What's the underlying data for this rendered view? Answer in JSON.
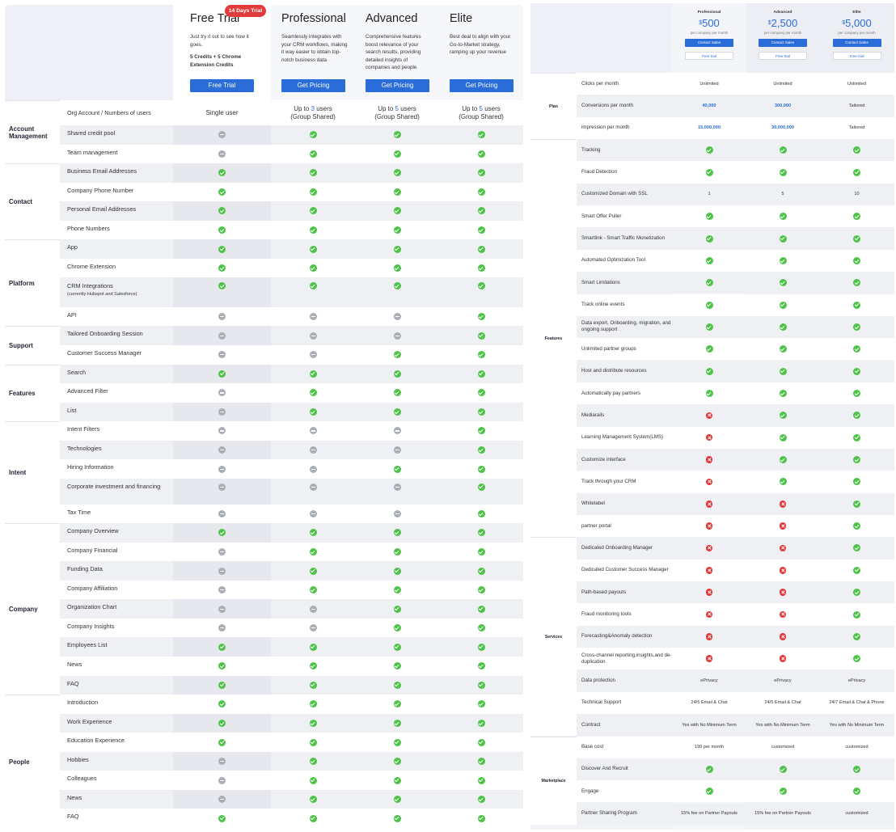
{
  "left": {
    "trial_badge": "14 Days Trial",
    "plans": [
      {
        "name": "Free Trial",
        "desc": "Just try it out to see how it goes.",
        "extra": "5 Credits + 5 Chrome Extension Credits",
        "button": "Free Trial"
      },
      {
        "name": "Professional",
        "desc": "Seamlessly integrates with your CRM workflows, making it way easier to obtain top-notch business data",
        "extra": "",
        "button": "Get Pricing"
      },
      {
        "name": "Advanced",
        "desc": "Comprehensive features boost relevance of your search results, providing detailed insights of companies and people",
        "extra": "",
        "button": "Get Pricing"
      },
      {
        "name": "Elite",
        "desc": "Best deal to align with your Go-to-Market strategy, ramping up your revenue",
        "extra": "",
        "button": "Get Pricing"
      }
    ],
    "first_row": {
      "feature": "Org Account / Numbers of users",
      "cells": [
        {
          "pre": "Single user",
          "num": "",
          "post": ""
        },
        {
          "pre": "Up to ",
          "num": "3",
          "post": " users",
          "sub": "(Group Shared)"
        },
        {
          "pre": "Up to ",
          "num": "5",
          "post": " users",
          "sub": "(Group Shared)"
        },
        {
          "pre": "Up to ",
          "num": "5",
          "post": " users",
          "sub": "(Group Shared)"
        }
      ]
    },
    "groups": [
      {
        "name": "Account Management",
        "rows": [
          {
            "f": "Shared credit pool",
            "v": [
              "n",
              "y",
              "y",
              "y"
            ]
          },
          {
            "f": "Team management",
            "v": [
              "n",
              "y",
              "y",
              "y"
            ]
          }
        ]
      },
      {
        "name": "Contact",
        "rows": [
          {
            "f": "Business Email Addresses",
            "v": [
              "y",
              "y",
              "y",
              "y"
            ]
          },
          {
            "f": "Company Phone Number",
            "v": [
              "y",
              "y",
              "y",
              "y"
            ]
          },
          {
            "f": "Personal Email Addresses",
            "v": [
              "y",
              "y",
              "y",
              "y"
            ]
          },
          {
            "f": "Phone Numbers",
            "v": [
              "y",
              "y",
              "y",
              "y"
            ]
          }
        ]
      },
      {
        "name": "Platform",
        "rows": [
          {
            "f": "App",
            "v": [
              "y",
              "y",
              "y",
              "y"
            ]
          },
          {
            "f": "Chrome Extension",
            "v": [
              "y",
              "y",
              "y",
              "y"
            ]
          },
          {
            "f": "CRM Integrations",
            "sub": "(currently Hubspot and Salesforce)",
            "v": [
              "y",
              "y",
              "y",
              "y"
            ],
            "tall": true
          },
          {
            "f": "API",
            "v": [
              "n",
              "n",
              "n",
              "y"
            ]
          }
        ]
      },
      {
        "name": "Support",
        "rows": [
          {
            "f": "Tailored Onboarding Session",
            "v": [
              "n",
              "n",
              "n",
              "y"
            ]
          },
          {
            "f": "Customer Success Manager",
            "v": [
              "n",
              "n",
              "y",
              "y"
            ]
          }
        ]
      },
      {
        "name": "Features",
        "rows": [
          {
            "f": "Search",
            "v": [
              "y",
              "y",
              "y",
              "y"
            ]
          },
          {
            "f": "Advanced Filter",
            "v": [
              "n",
              "y",
              "y",
              "y"
            ]
          },
          {
            "f": "List",
            "v": [
              "n",
              "y",
              "y",
              "y"
            ]
          }
        ]
      },
      {
        "name": "Intent",
        "rows": [
          {
            "f": "Intent Filters",
            "v": [
              "n",
              "n",
              "n",
              "y"
            ]
          },
          {
            "f": "Technologies",
            "v": [
              "n",
              "n",
              "n",
              "y"
            ]
          },
          {
            "f": "Hiring Information",
            "v": [
              "n",
              "n",
              "y",
              "y"
            ]
          },
          {
            "f": "Corporate investment and financing",
            "v": [
              "n",
              "n",
              "n",
              "y"
            ],
            "tall": true
          },
          {
            "f": "Tax Time",
            "v": [
              "n",
              "n",
              "n",
              "y"
            ]
          }
        ]
      },
      {
        "name": "Company",
        "rows": [
          {
            "f": "Company Overview",
            "v": [
              "y",
              "y",
              "y",
              "y"
            ]
          },
          {
            "f": "Company Financial",
            "v": [
              "n",
              "y",
              "y",
              "y"
            ]
          },
          {
            "f": "Funding Data",
            "v": [
              "n",
              "y",
              "y",
              "y"
            ]
          },
          {
            "f": "Company Affiliation",
            "v": [
              "n",
              "y",
              "y",
              "y"
            ]
          },
          {
            "f": "Organization Chart",
            "v": [
              "n",
              "n",
              "y",
              "y"
            ]
          },
          {
            "f": "Company Insights",
            "v": [
              "n",
              "n",
              "y",
              "y"
            ]
          },
          {
            "f": "Employees List",
            "v": [
              "y",
              "y",
              "y",
              "y"
            ]
          },
          {
            "f": "News",
            "v": [
              "y",
              "y",
              "y",
              "y"
            ]
          },
          {
            "f": "FAQ",
            "v": [
              "y",
              "y",
              "y",
              "y"
            ]
          }
        ]
      },
      {
        "name": "People",
        "rows": [
          {
            "f": "Introduction",
            "v": [
              "y",
              "y",
              "y",
              "y"
            ]
          },
          {
            "f": "Work Experience",
            "v": [
              "y",
              "y",
              "y",
              "y"
            ]
          },
          {
            "f": "Education Experience",
            "v": [
              "y",
              "y",
              "y",
              "y"
            ]
          },
          {
            "f": "Hobbies",
            "v": [
              "n",
              "y",
              "y",
              "y"
            ]
          },
          {
            "f": "Colleagues",
            "v": [
              "n",
              "y",
              "y",
              "y"
            ]
          },
          {
            "f": "News",
            "v": [
              "n",
              "y",
              "y",
              "y"
            ]
          },
          {
            "f": "FAQ",
            "v": [
              "y",
              "y",
              "y",
              "y"
            ]
          }
        ]
      }
    ]
  },
  "right": {
    "plans": [
      {
        "name": "Professional",
        "currency": "$",
        "price": "500",
        "per": "per company per month",
        "contact": "Contact Sales",
        "trial": "Free trial"
      },
      {
        "name": "Advanced",
        "currency": "$",
        "price": "2,500",
        "per": "per company per month",
        "contact": "Contact Sales",
        "trial": "Free trial"
      },
      {
        "name": "Elite",
        "currency": "$",
        "price": "5,000",
        "per": "per company per month",
        "contact": "Contact Sales",
        "trial": "Free trial"
      }
    ],
    "groups": [
      {
        "name": "Plan",
        "rows": [
          {
            "f": "Clicks per month",
            "v": [
              "Unlimited",
              "Unlimited",
              "Unlimited"
            ]
          },
          {
            "f": "Conversions per month",
            "v": [
              "40,000",
              "300,000",
              "Tailored"
            ],
            "blue": [
              true,
              true,
              false
            ]
          },
          {
            "f": "impression per month",
            "v": [
              "15,000,000",
              "30,000,000",
              "Tailored"
            ],
            "blue": [
              true,
              true,
              false
            ]
          }
        ]
      },
      {
        "name": "Features",
        "rows": [
          {
            "f": "Tracking",
            "v": [
              "y",
              "y",
              "y"
            ]
          },
          {
            "f": "Fraud Detection",
            "v": [
              "y",
              "y",
              "y"
            ]
          },
          {
            "f": "Customized Domain with SSL",
            "v": [
              "1",
              "5",
              "10"
            ]
          },
          {
            "f": "Smart Offer Puller",
            "v": [
              "y",
              "y",
              "y"
            ]
          },
          {
            "f": "Smartlink - Smart Traffic Monetization",
            "v": [
              "y",
              "y",
              "y"
            ]
          },
          {
            "f": "Automated Optimization Tool",
            "v": [
              "y",
              "y",
              "y"
            ]
          },
          {
            "f": "Smart Limitations",
            "v": [
              "y",
              "y",
              "y"
            ]
          },
          {
            "f": "Track online events",
            "v": [
              "y",
              "y",
              "y"
            ]
          },
          {
            "f": "Data export, Onboarding, migration, and ongoing support",
            "v": [
              "y",
              "y",
              "y"
            ]
          },
          {
            "f": "Unlimited partner groups",
            "v": [
              "y",
              "y",
              "y"
            ]
          },
          {
            "f": "Host and distribute resources",
            "v": [
              "y",
              "y",
              "y"
            ]
          },
          {
            "f": "Automatically pay partners",
            "v": [
              "y",
              "y",
              "y"
            ]
          },
          {
            "f": "Mediarails",
            "v": [
              "x",
              "y",
              "y"
            ]
          },
          {
            "f": "Learning Management System(LMS)",
            "v": [
              "x",
              "y",
              "y"
            ]
          },
          {
            "f": "Customize interface",
            "v": [
              "x",
              "y",
              "y"
            ]
          },
          {
            "f": "Track through your CRM",
            "v": [
              "x",
              "y",
              "y"
            ]
          },
          {
            "f": "Whitelabel",
            "v": [
              "x",
              "x",
              "y"
            ]
          },
          {
            "f": "partner portal",
            "v": [
              "x",
              "x",
              "y"
            ]
          }
        ]
      },
      {
        "name": "Services",
        "rows": [
          {
            "f": "Dedicated Onboarding Manager",
            "v": [
              "x",
              "x",
              "y"
            ]
          },
          {
            "f": "Dedicated Customer Success Manager",
            "v": [
              "x",
              "x",
              "y"
            ]
          },
          {
            "f": "Path-based payouts",
            "v": [
              "x",
              "x",
              "y"
            ]
          },
          {
            "f": "Fraud monitoring tools",
            "v": [
              "x",
              "x",
              "y"
            ]
          },
          {
            "f": "Forecasting&Anomaly detection",
            "v": [
              "x",
              "x",
              "y"
            ]
          },
          {
            "f": "Cross-channel reporting,insights,and de-duplication",
            "v": [
              "x",
              "x",
              "y"
            ]
          },
          {
            "f": "Data protection",
            "v": [
              "ePrivacy",
              "ePrivacy",
              "ePrivacy"
            ]
          },
          {
            "f": "Technical Support",
            "v": [
              "24/5 Email & Chat",
              "24/5 Email & Chat",
              "24/7 Email & Chat & Phone"
            ]
          },
          {
            "f": "Contract",
            "v": [
              "Yes with No Minimum Term",
              "Yes with No Minimum Term",
              "Yes with No Minimum Term"
            ]
          }
        ]
      },
      {
        "name": "Marketplace",
        "rows": [
          {
            "f": "Base cost",
            "v": [
              "199 per month",
              "customized",
              "customized"
            ]
          },
          {
            "f": "Discover And Recruit",
            "v": [
              "y",
              "y",
              "y"
            ]
          },
          {
            "f": "Engage",
            "v": [
              "y",
              "y",
              "y"
            ]
          },
          {
            "f": "Partner Sharing Program",
            "v": [
              "15% fee on Partner Payouts",
              "15% fee on Partner Payouts",
              "customized"
            ]
          }
        ]
      }
    ]
  }
}
